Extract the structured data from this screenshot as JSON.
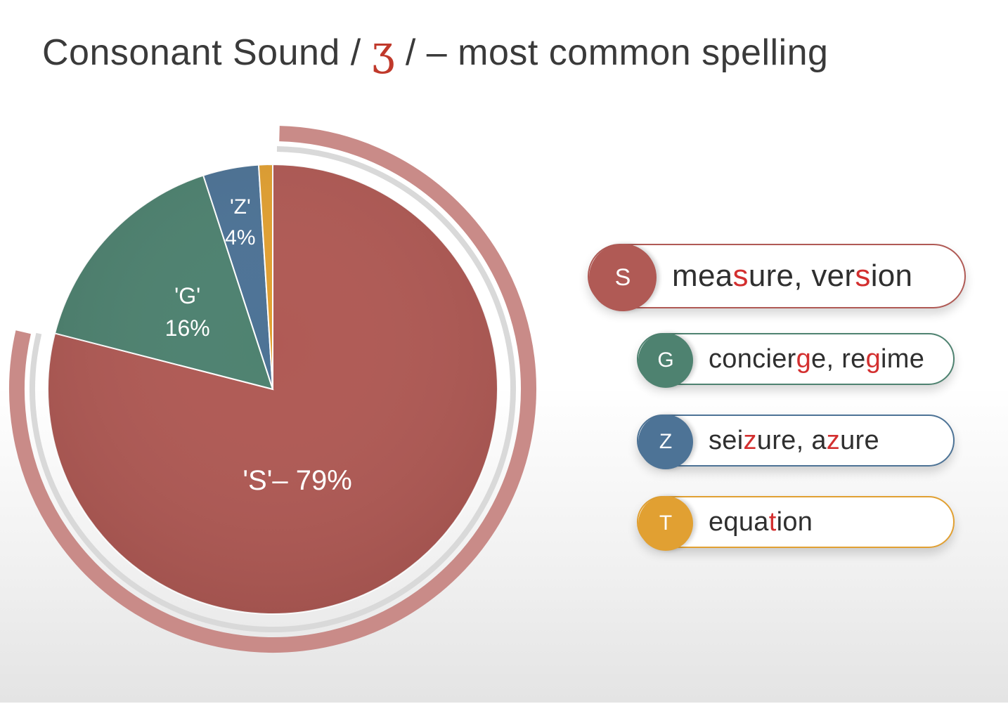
{
  "title": {
    "before": "Consonant Sound /",
    "ipa": "ʒ",
    "after": "/ – most common spelling"
  },
  "chart_data": {
    "type": "pie",
    "title": "Consonant Sound / ʒ / – most common spelling",
    "slices": [
      {
        "key": "S",
        "label": "'S'– 79%",
        "value": 79,
        "color": "#b05a55"
      },
      {
        "key": "G",
        "label_line1": "'G'",
        "label_line2": "16%",
        "value": 16,
        "color": "#4e8270"
      },
      {
        "key": "Z",
        "label_line1": "'Z'",
        "label_line2": "4%",
        "value": 4,
        "color": "#4d7396"
      },
      {
        "key": "T",
        "value": 1,
        "color": "#e1a032"
      }
    ],
    "legend_placement": "right"
  },
  "legend": [
    {
      "letter": "S",
      "color": "#b05a55",
      "parts": [
        {
          "t": "mea"
        },
        {
          "t": "s",
          "hl": true
        },
        {
          "t": "ure, ver"
        },
        {
          "t": "s",
          "hl": true
        },
        {
          "t": "ion"
        }
      ]
    },
    {
      "letter": "G",
      "color": "#4e8270",
      "parts": [
        {
          "t": "concier"
        },
        {
          "t": "g",
          "hl": true
        },
        {
          "t": "e, re"
        },
        {
          "t": "g",
          "hl": true
        },
        {
          "t": "ime"
        }
      ]
    },
    {
      "letter": "Z",
      "color": "#4d7396",
      "parts": [
        {
          "t": "sei"
        },
        {
          "t": "z",
          "hl": true
        },
        {
          "t": "ure, a"
        },
        {
          "t": "z",
          "hl": true
        },
        {
          "t": "ure"
        }
      ]
    },
    {
      "letter": "T",
      "color": "#e1a032",
      "parts": [
        {
          "t": "equa"
        },
        {
          "t": "t",
          "hl": true
        },
        {
          "t": "ion"
        }
      ]
    }
  ]
}
